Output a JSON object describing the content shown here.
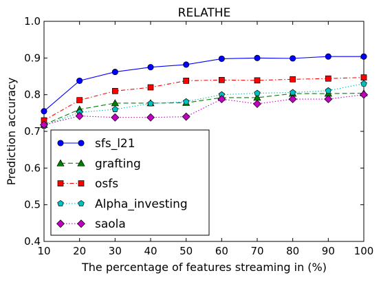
{
  "chart_data": {
    "type": "line",
    "title": "RELATHE",
    "xlabel": "The percentage of features streaming in (%)",
    "ylabel": "Prediction accuracy",
    "x": [
      10,
      20,
      30,
      40,
      50,
      60,
      70,
      80,
      90,
      100
    ],
    "xlim": [
      10,
      100
    ],
    "ylim": [
      0.4,
      1.0
    ],
    "xticks": [
      "10",
      "20",
      "30",
      "40",
      "50",
      "60",
      "70",
      "80",
      "90",
      "100"
    ],
    "yticks": [
      "0.4",
      "0.5",
      "0.6",
      "0.7",
      "0.8",
      "0.9",
      "1.0"
    ],
    "grid": false,
    "legend_position": "lower-left",
    "series": [
      {
        "name": "sfs_l21",
        "color": "#0000ff",
        "line_style": "solid",
        "marker": "circle",
        "values": [
          0.755,
          0.838,
          0.862,
          0.875,
          0.882,
          0.898,
          0.9,
          0.899,
          0.904,
          0.904
        ]
      },
      {
        "name": "grafting",
        "color": "#008000",
        "line_style": "dashed",
        "marker": "triangle",
        "values": [
          0.718,
          0.76,
          0.777,
          0.777,
          0.778,
          0.792,
          0.792,
          0.803,
          0.803,
          0.804
        ]
      },
      {
        "name": "osfs",
        "color": "#ff0000",
        "line_style": "dashdot",
        "marker": "square",
        "values": [
          0.73,
          0.785,
          0.81,
          0.82,
          0.838,
          0.84,
          0.839,
          0.842,
          0.844,
          0.847
        ]
      },
      {
        "name": "Alpha_investing",
        "color": "#00bfbf",
        "line_style": "dotted",
        "marker": "pentagon",
        "values": [
          0.715,
          0.752,
          0.76,
          0.776,
          0.781,
          0.8,
          0.804,
          0.806,
          0.811,
          0.83
        ]
      },
      {
        "name": "saola",
        "color": "#bf00bf",
        "line_style": "dotted",
        "marker": "diamond",
        "values": [
          0.718,
          0.742,
          0.738,
          0.738,
          0.74,
          0.788,
          0.775,
          0.788,
          0.788,
          0.8
        ]
      }
    ]
  }
}
